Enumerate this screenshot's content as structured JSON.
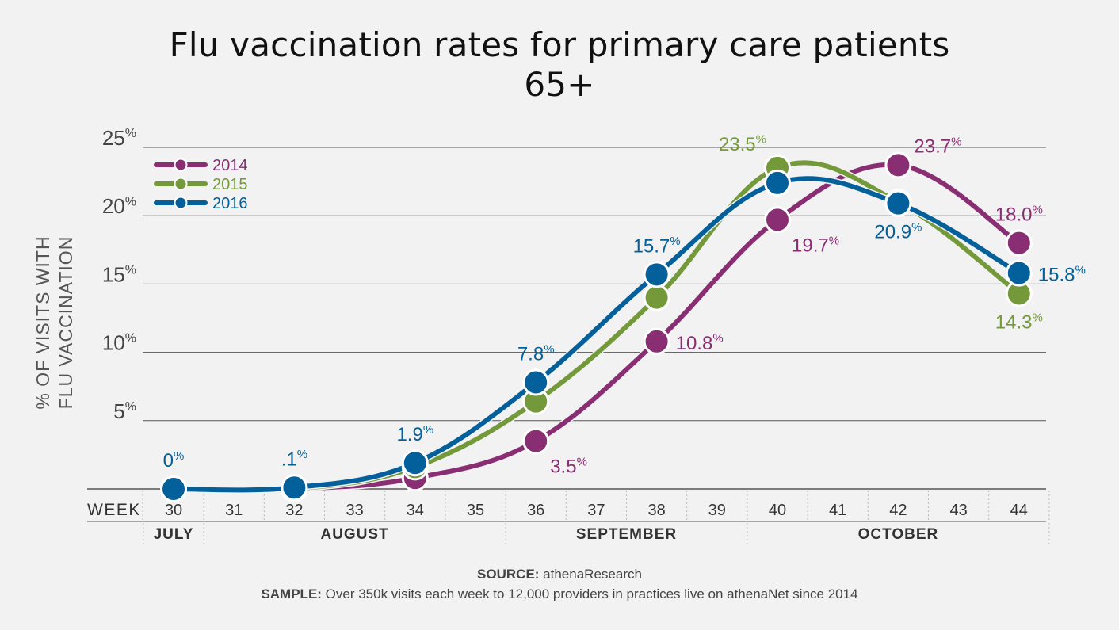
{
  "chart_data": {
    "type": "line",
    "title_lines": [
      "Flu vaccination rates for primary care patients",
      "65+"
    ],
    "ylabel_lines": [
      "% OF VISITS WITH",
      "FLU VACCINATION"
    ],
    "xlabel": "WEEK",
    "ylim": [
      0,
      25
    ],
    "y_ticks": [
      {
        "value": 5,
        "label": "5%"
      },
      {
        "value": 10,
        "label": "10%"
      },
      {
        "value": 15,
        "label": "15%"
      },
      {
        "value": 20,
        "label": "20%"
      },
      {
        "value": 25,
        "label": "25%"
      }
    ],
    "x_ticks": [
      "30",
      "31",
      "32",
      "33",
      "34",
      "35",
      "36",
      "37",
      "38",
      "39",
      "40",
      "41",
      "42",
      "43",
      "44"
    ],
    "months": [
      {
        "label": "JULY",
        "from": 30,
        "to": 30
      },
      {
        "label": "AUGUST",
        "from": 31,
        "to": 35
      },
      {
        "label": "SEPTEMBER",
        "from": 36,
        "to": 39
      },
      {
        "label": "OCTOBER",
        "from": 40,
        "to": 44
      }
    ],
    "grid": true,
    "legend_position": "top-left",
    "series": [
      {
        "name": "2014",
        "color": "#8a2e74",
        "x": [
          30,
          32,
          34,
          36,
          38,
          40,
          42,
          44
        ],
        "y": [
          0,
          0,
          0.8,
          3.5,
          10.8,
          19.7,
          23.7,
          18.0
        ],
        "labels": [
          {
            "x": 36,
            "text": "3.5",
            "pos": "below-right"
          },
          {
            "x": 38,
            "text": "10.8",
            "pos": "right"
          },
          {
            "x": 40,
            "text": "19.7",
            "pos": "below-right"
          },
          {
            "x": 42,
            "text": "23.7",
            "pos": "above-right"
          },
          {
            "x": 44,
            "text": "18.0",
            "pos": "above"
          }
        ]
      },
      {
        "name": "2015",
        "color": "#74993a",
        "x": [
          30,
          32,
          34,
          36,
          38,
          40,
          42,
          44
        ],
        "y": [
          0,
          0,
          1.6,
          6.4,
          14.0,
          23.5,
          21.0,
          14.3
        ],
        "labels": [
          {
            "x": 40,
            "text": "23.5",
            "pos": "above-left"
          },
          {
            "x": 44,
            "text": "14.3",
            "pos": "below"
          }
        ]
      },
      {
        "name": "2016",
        "color": "#04609a",
        "x": [
          30,
          32,
          34,
          36,
          38,
          40,
          42,
          44
        ],
        "y": [
          0,
          0.1,
          1.9,
          7.8,
          15.7,
          22.4,
          20.9,
          15.8
        ],
        "labels": [
          {
            "x": 30,
            "text": "0",
            "pos": "above"
          },
          {
            "x": 32,
            "text": ".1",
            "pos": "above"
          },
          {
            "x": 34,
            "text": "1.9",
            "pos": "above"
          },
          {
            "x": 36,
            "text": "7.8",
            "pos": "above"
          },
          {
            "x": 38,
            "text": "15.7",
            "pos": "above"
          },
          {
            "x": 42,
            "text": "20.9",
            "pos": "below"
          },
          {
            "x": 44,
            "text": "15.8",
            "pos": "right"
          }
        ]
      }
    ],
    "percent_suffix": "%"
  },
  "footer": {
    "source_label": "SOURCE:",
    "source_text": " athenaResearch",
    "sample_label": "SAMPLE:",
    "sample_text": " Over 350k visits each week to 12,000 providers in practices live on athenaNet since 2014"
  }
}
